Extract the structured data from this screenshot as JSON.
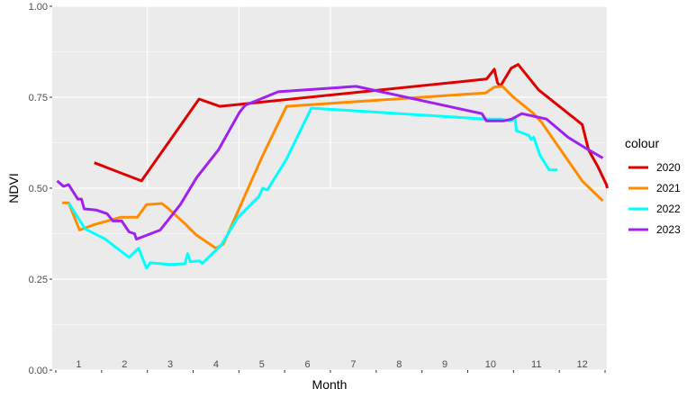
{
  "chart_data": {
    "type": "line",
    "title": "",
    "xlabel": "Month",
    "ylabel": "NDVI",
    "ylim": [
      0,
      1
    ],
    "yticks": [
      0.0,
      0.25,
      0.5,
      0.75,
      1.0
    ],
    "ytick_labels": [
      "0.00",
      "0.25",
      "0.50",
      "0.75",
      "1.00"
    ],
    "xlim": [
      0,
      12
    ],
    "month_labels": [
      "1",
      "2",
      "3",
      "4",
      "5",
      "6",
      "7",
      "8",
      "9",
      "10",
      "11",
      "12"
    ],
    "grid": true,
    "legend": {
      "title": "colour",
      "placement": "right"
    },
    "series": [
      {
        "name": "2020",
        "color": "#e00000",
        "points": [
          [
            0.84,
            0.57
          ],
          [
            1.87,
            0.52
          ],
          [
            3.13,
            0.745
          ],
          [
            3.58,
            0.725
          ],
          [
            9.41,
            0.8
          ],
          [
            9.58,
            0.827
          ],
          [
            9.65,
            0.79
          ],
          [
            9.71,
            0.78
          ],
          [
            9.95,
            0.83
          ],
          [
            10.1,
            0.84
          ],
          [
            10.55,
            0.77
          ],
          [
            11.5,
            0.675
          ],
          [
            11.64,
            0.605
          ],
          [
            11.84,
            0.56
          ],
          [
            12.03,
            0.51
          ],
          [
            12.05,
            0.5
          ]
        ]
      },
      {
        "name": "2021",
        "color": "#ff8c00",
        "points": [
          [
            0.14,
            0.46
          ],
          [
            0.28,
            0.46
          ],
          [
            0.52,
            0.385
          ],
          [
            0.84,
            0.4
          ],
          [
            1.42,
            0.42
          ],
          [
            1.78,
            0.42
          ],
          [
            1.98,
            0.455
          ],
          [
            2.32,
            0.458
          ],
          [
            2.45,
            0.445
          ],
          [
            2.84,
            0.4
          ],
          [
            3.06,
            0.372
          ],
          [
            3.5,
            0.335
          ],
          [
            3.66,
            0.346
          ],
          [
            4.52,
            0.59
          ],
          [
            5.04,
            0.725
          ],
          [
            9.39,
            0.762
          ],
          [
            9.58,
            0.778
          ],
          [
            9.76,
            0.78
          ],
          [
            10.0,
            0.75
          ],
          [
            10.44,
            0.705
          ],
          [
            10.62,
            0.68
          ],
          [
            11.5,
            0.52
          ],
          [
            11.95,
            0.465
          ]
        ]
      },
      {
        "name": "2022",
        "color": "#00ffff",
        "points": [
          [
            0.28,
            0.46
          ],
          [
            0.64,
            0.388
          ],
          [
            1.08,
            0.36
          ],
          [
            1.6,
            0.31
          ],
          [
            1.81,
            0.335
          ],
          [
            1.98,
            0.28
          ],
          [
            2.06,
            0.295
          ],
          [
            2.48,
            0.29
          ],
          [
            2.82,
            0.292
          ],
          [
            2.88,
            0.32
          ],
          [
            2.94,
            0.298
          ],
          [
            3.14,
            0.3
          ],
          [
            3.2,
            0.293
          ],
          [
            3.62,
            0.345
          ],
          [
            3.98,
            0.42
          ],
          [
            4.44,
            0.478
          ],
          [
            4.52,
            0.5
          ],
          [
            4.62,
            0.495
          ],
          [
            5.04,
            0.58
          ],
          [
            5.58,
            0.72
          ],
          [
            9.39,
            0.69
          ],
          [
            9.73,
            0.69
          ],
          [
            9.92,
            0.685
          ],
          [
            10.04,
            0.69
          ],
          [
            10.06,
            0.658
          ],
          [
            10.34,
            0.645
          ],
          [
            10.38,
            0.634
          ],
          [
            10.44,
            0.64
          ],
          [
            10.58,
            0.59
          ],
          [
            10.78,
            0.55
          ],
          [
            10.96,
            0.55
          ]
        ]
      },
      {
        "name": "2023",
        "color": "#a020f0",
        "points": [
          [
            0.03,
            0.52
          ],
          [
            0.17,
            0.505
          ],
          [
            0.28,
            0.51
          ],
          [
            0.48,
            0.47
          ],
          [
            0.56,
            0.47
          ],
          [
            0.62,
            0.443
          ],
          [
            0.88,
            0.44
          ],
          [
            1.12,
            0.43
          ],
          [
            1.25,
            0.41
          ],
          [
            1.44,
            0.41
          ],
          [
            1.6,
            0.38
          ],
          [
            1.72,
            0.375
          ],
          [
            1.76,
            0.36
          ],
          [
            2.28,
            0.385
          ],
          [
            2.72,
            0.455
          ],
          [
            3.08,
            0.53
          ],
          [
            3.55,
            0.605
          ],
          [
            4.02,
            0.71
          ],
          [
            4.14,
            0.728
          ],
          [
            4.86,
            0.765
          ],
          [
            6.56,
            0.78
          ],
          [
            9.31,
            0.705
          ],
          [
            9.41,
            0.685
          ],
          [
            9.78,
            0.685
          ],
          [
            9.96,
            0.69
          ],
          [
            10.18,
            0.705
          ],
          [
            10.72,
            0.69
          ],
          [
            11.19,
            0.64
          ],
          [
            11.58,
            0.61
          ],
          [
            11.95,
            0.583
          ]
        ]
      }
    ]
  }
}
